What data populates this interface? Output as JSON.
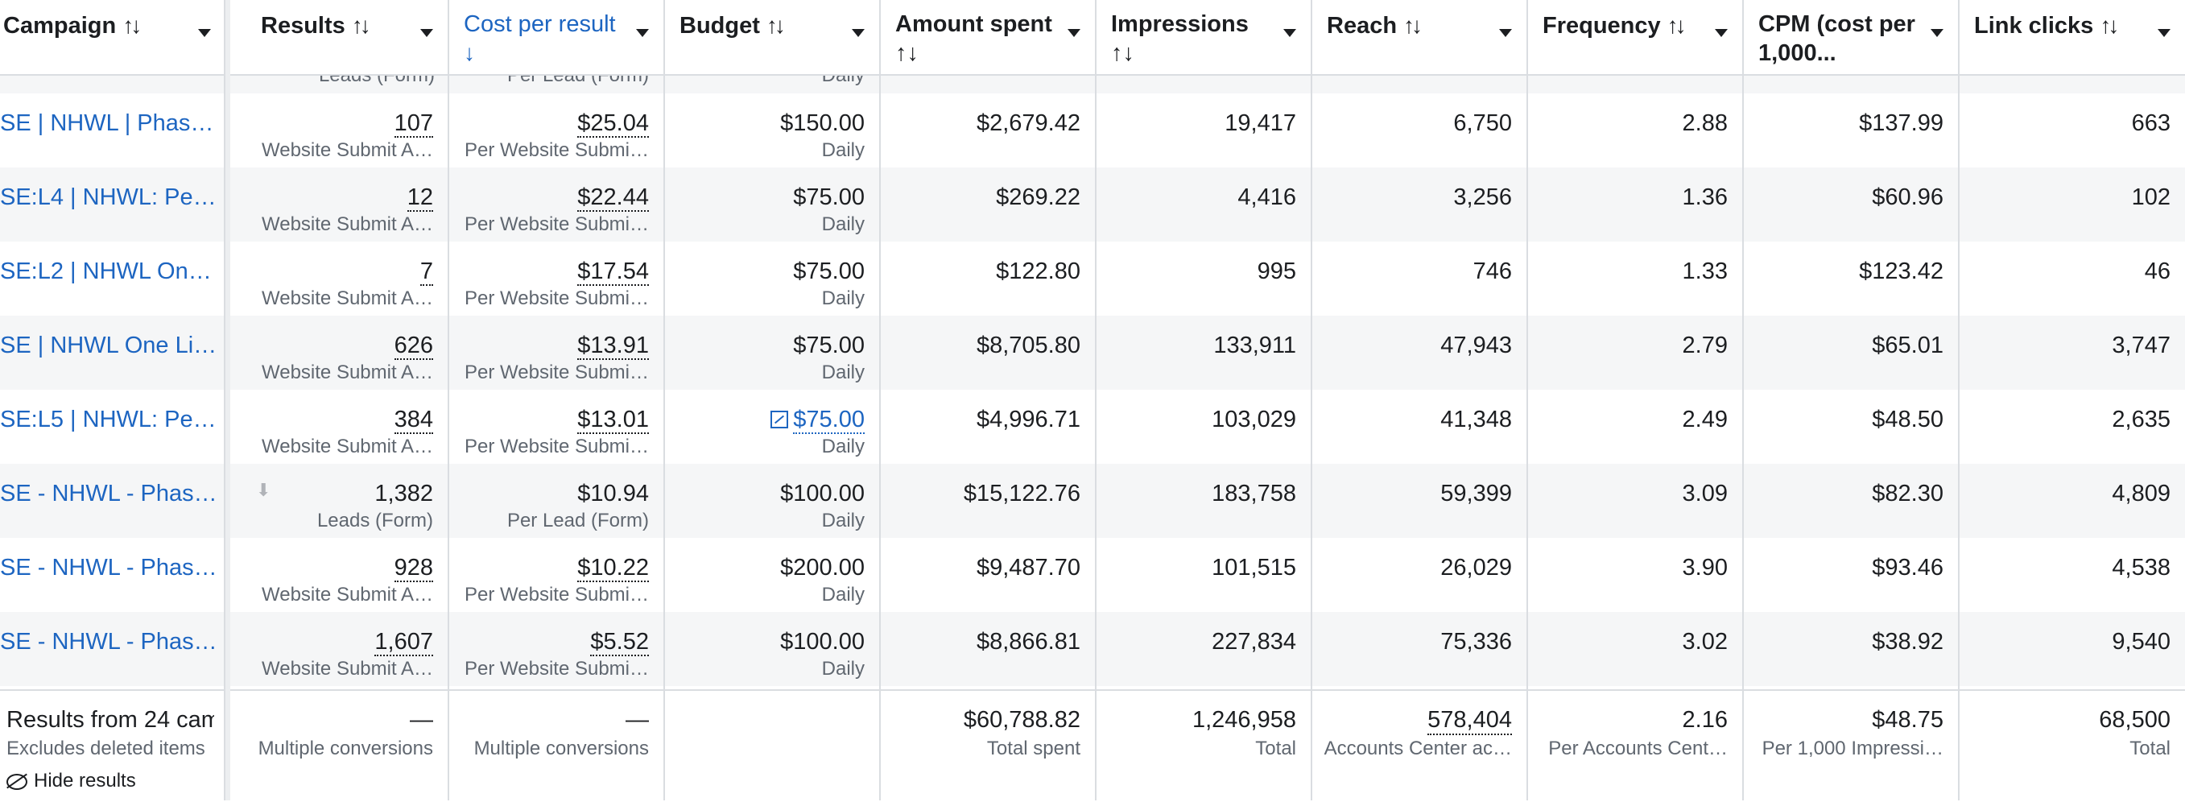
{
  "columns": [
    {
      "key": "campaign",
      "label": "Campaign",
      "sort": "↑↓"
    },
    {
      "key": "results",
      "label": "Results",
      "sort": "↑↓"
    },
    {
      "key": "cost",
      "label": "Cost per result",
      "sort": "↓",
      "active": true
    },
    {
      "key": "budget",
      "label": "Budget",
      "sort": "↑↓"
    },
    {
      "key": "spent",
      "label": "Amount spent",
      "sort": "↑↓"
    },
    {
      "key": "impr",
      "label": "Impressions",
      "sort": "↑↓"
    },
    {
      "key": "reach",
      "label": "Reach",
      "sort": "↑↓"
    },
    {
      "key": "freq",
      "label": "Frequency",
      "sort": "↑↓"
    },
    {
      "key": "cpm",
      "label": "CPM (cost per 1,000...",
      "sort": ""
    },
    {
      "key": "clicks",
      "label": "Link clicks",
      "sort": "↑↓"
    }
  ],
  "partial_row": {
    "results_sub": "Leads (Form)",
    "cost_sub": "Per Lead (Form)",
    "budget_sub": "Daily"
  },
  "rows": [
    {
      "campaign": "SE | NHWL | Phas…",
      "results": "107",
      "results_sub": "Website Submit A…",
      "cost": "$25.04",
      "cost_sub": "Per Website Submi…",
      "budget": "$150.00",
      "budget_sub": "Daily",
      "spent": "$2,679.42",
      "impr": "19,417",
      "reach": "6,750",
      "freq": "2.88",
      "cpm": "$137.99",
      "clicks": "663"
    },
    {
      "campaign": "SE:L4 | NHWL: Pe…",
      "results": "12",
      "results_sub": "Website Submit A…",
      "cost": "$22.44",
      "cost_sub": "Per Website Submi…",
      "budget": "$75.00",
      "budget_sub": "Daily",
      "spent": "$269.22",
      "impr": "4,416",
      "reach": "3,256",
      "freq": "1.36",
      "cpm": "$60.96",
      "clicks": "102"
    },
    {
      "campaign": "SE:L2 | NHWL On…",
      "results": "7",
      "results_sub": "Website Submit A…",
      "cost": "$17.54",
      "cost_sub": "Per Website Submi…",
      "budget": "$75.00",
      "budget_sub": "Daily",
      "spent": "$122.80",
      "impr": "995",
      "reach": "746",
      "freq": "1.33",
      "cpm": "$123.42",
      "clicks": "46"
    },
    {
      "campaign": "SE | NHWL One Li…",
      "results": "626",
      "results_sub": "Website Submit A…",
      "cost": "$13.91",
      "cost_sub": "Per Website Submi…",
      "budget": "$75.00",
      "budget_sub": "Daily",
      "spent": "$8,705.80",
      "impr": "133,911",
      "reach": "47,943",
      "freq": "2.79",
      "cpm": "$65.01",
      "clicks": "3,747"
    },
    {
      "campaign": "SE:L5 | NHWL: Pe…",
      "results": "384",
      "results_sub": "Website Submit A…",
      "cost": "$13.01",
      "cost_sub": "Per Website Submi…",
      "budget": "$75.00",
      "budget_sub": "Daily",
      "budget_link": true,
      "spent": "$4,996.71",
      "impr": "103,029",
      "reach": "41,348",
      "freq": "2.49",
      "cpm": "$48.50",
      "clicks": "2,635"
    },
    {
      "campaign": "SE - NHWL - Phas…",
      "results": "1,382",
      "results_sub": "Leads (Form)",
      "cost": "$10.94",
      "cost_sub": "Per Lead (Form)",
      "budget": "$100.00",
      "budget_sub": "Daily",
      "spent": "$15,122.76",
      "impr": "183,758",
      "reach": "59,399",
      "freq": "3.09",
      "cpm": "$82.30",
      "clicks": "4,809",
      "plain": true
    },
    {
      "campaign": "SE - NHWL - Phas…",
      "results": "928",
      "results_sub": "Website Submit A…",
      "cost": "$10.22",
      "cost_sub": "Per Website Submi…",
      "budget": "$200.00",
      "budget_sub": "Daily",
      "spent": "$9,487.70",
      "impr": "101,515",
      "reach": "26,029",
      "freq": "3.90",
      "cpm": "$93.46",
      "clicks": "4,538"
    },
    {
      "campaign": "SE - NHWL - Phas…",
      "results": "1,607",
      "results_sub": "Website Submit A…",
      "cost": "$5.52",
      "cost_sub": "Per Website Submi…",
      "budget": "$100.00",
      "budget_sub": "Daily",
      "spent": "$8,866.81",
      "impr": "227,834",
      "reach": "75,336",
      "freq": "3.02",
      "cpm": "$38.92",
      "clicks": "9,540"
    }
  ],
  "footer": {
    "title": "Results from 24 cam",
    "subtitle": "Excludes deleted items",
    "hide_label": "Hide results",
    "results": "—",
    "results_sub": "Multiple conversions",
    "cost": "—",
    "cost_sub": "Multiple conversions",
    "spent": "$60,788.82",
    "spent_sub": "Total spent",
    "impr": "1,246,958",
    "impr_sub": "Total",
    "reach": "578,404",
    "reach_sub": "Accounts Center ac…",
    "freq": "2.16",
    "freq_sub": "Per Accounts Cent…",
    "cpm": "$48.75",
    "cpm_sub": "Per 1,000 Impressi…",
    "clicks": "68,500",
    "clicks_sub": "Total"
  },
  "colors": {
    "link": "#1d65c1",
    "alt_row": "#f5f6f7",
    "border": "#dadde1"
  }
}
